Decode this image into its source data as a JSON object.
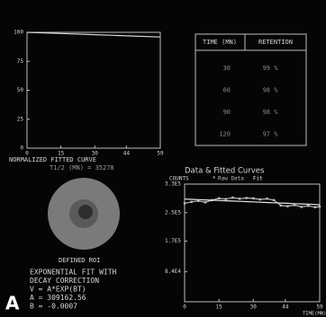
{
  "chart_data": [
    {
      "type": "line",
      "title": "NORMALIZED FITTED CURVE",
      "subtitle": "T1/2 (MN) = 35278",
      "x": [
        0,
        15,
        30,
        44,
        59
      ],
      "xlim": [
        0,
        59
      ],
      "xticks": [
        0,
        15,
        30,
        44,
        59
      ],
      "ylim": [
        0,
        100
      ],
      "yticks": [
        0,
        25,
        50,
        75,
        100
      ],
      "series": [
        {
          "color": "#d8d8d8",
          "values": [
            100,
            99,
            98,
            97,
            96
          ]
        }
      ]
    },
    {
      "type": "line",
      "title": "Data & Fitted Curves",
      "y_label": "COUNTS",
      "x_label": "TIME(MN)",
      "x": [
        0,
        3,
        6,
        9,
        12,
        15,
        18,
        21,
        24,
        27,
        30,
        33,
        36,
        39,
        42,
        45,
        48,
        51,
        54,
        57,
        59
      ],
      "xlim": [
        0,
        59
      ],
      "xticks": [
        0,
        15,
        30,
        44,
        59
      ],
      "ylim": [
        0,
        330000
      ],
      "yticks": [
        {
          "value": 330000,
          "label": "3.3E5"
        },
        {
          "value": 250000,
          "label": "2.5E5"
        },
        {
          "value": 170000,
          "label": "1.7E5"
        },
        {
          "value": 84000,
          "label": "8.4E4"
        }
      ],
      "series": [
        {
          "name": "Raw Data",
          "color": "#bdbdbd",
          "markers": true,
          "values": [
            276000,
            280000,
            283000,
            279000,
            285000,
            290000,
            288000,
            292000,
            289000,
            291000,
            290000,
            287000,
            289000,
            285000,
            270000,
            268000,
            271000,
            266000,
            269000,
            265000,
            267000
          ]
        },
        {
          "name": "Fit",
          "color": "#e6e6e6",
          "markers": false,
          "values": [
            288000,
            287200,
            286400,
            285600,
            284800,
            284000,
            283200,
            282400,
            281600,
            280800,
            280000,
            279200,
            278400,
            277600,
            276800,
            276000,
            275200,
            274400,
            273600,
            272800,
            272000
          ]
        }
      ]
    }
  ],
  "table": {
    "header": [
      "TIME (MN)",
      "RETENTION"
    ],
    "rows": [
      [
        "30",
        "99 %"
      ],
      [
        "60",
        "98 %"
      ],
      [
        "90",
        "98 %"
      ],
      [
        "120",
        "97 %"
      ]
    ]
  },
  "roi_label": "DEFINED ROI",
  "fit_text": [
    "EXPONENTIAL FIT WITH",
    "DECAY CORRECTION",
    "V = A*EXP(BT)",
    "A  =  309162.56",
    "B  =  -0.0007"
  ],
  "panel_label": "A"
}
